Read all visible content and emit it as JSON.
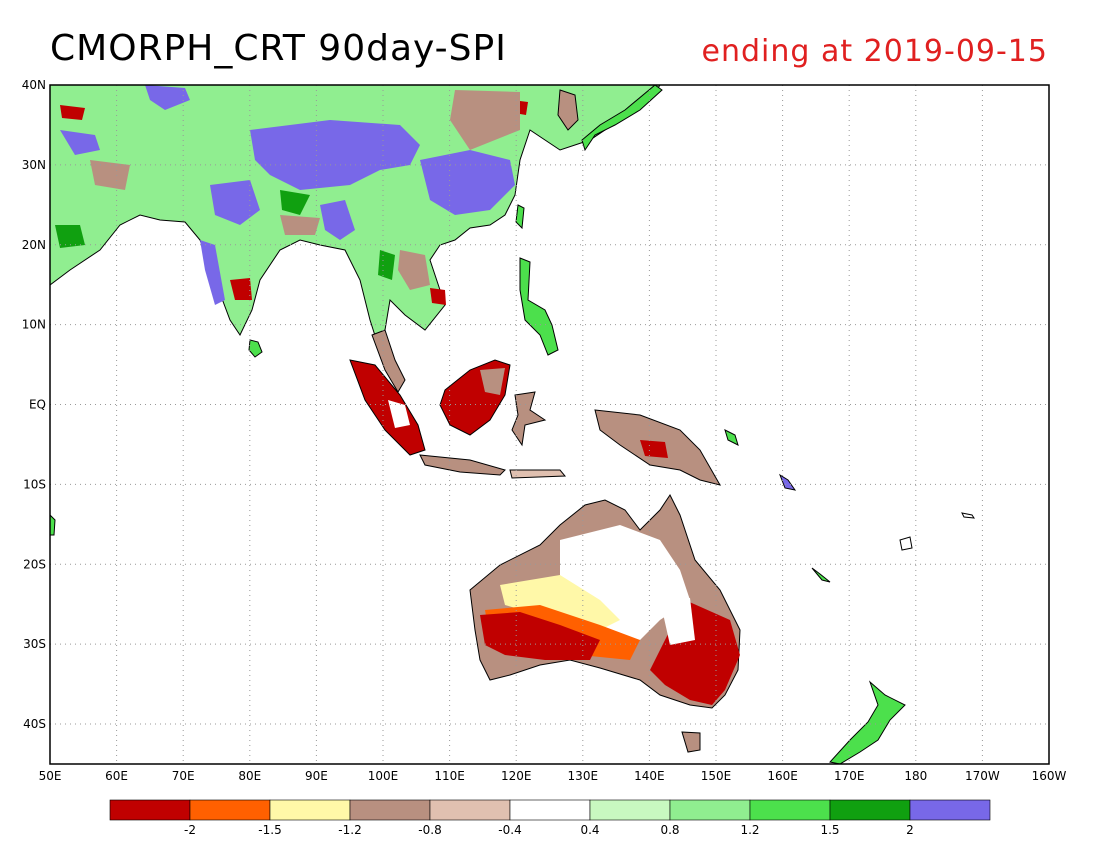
{
  "title": "CMORPH_CRT 90day-SPI",
  "subtitle": "ending at 2019-09-15",
  "map": {
    "lon_range": [
      50,
      200
    ],
    "lat_range": [
      -45,
      40
    ],
    "lon_ticks": [
      "50E",
      "60E",
      "70E",
      "80E",
      "90E",
      "100E",
      "110E",
      "120E",
      "130E",
      "140E",
      "150E",
      "160E",
      "170E",
      "180",
      "170W",
      "160W"
    ],
    "lat_ticks": [
      "40N",
      "30N",
      "20N",
      "10N",
      "EQ",
      "10S",
      "20S",
      "30S",
      "40S"
    ],
    "grid": "dotted"
  },
  "legend": {
    "colors": [
      "#c00000",
      "#ff6000",
      "#fff8a8",
      "#b89080",
      "#e0c0b0",
      "#ffffff",
      "#c8f8c0",
      "#90ee90",
      "#4ce04c",
      "#10a010",
      "#7868e8"
    ],
    "labels": [
      "-2",
      "-1.5",
      "-1.2",
      "-0.8",
      "-0.4",
      "0.4",
      "0.8",
      "1.2",
      "1.5",
      "2"
    ]
  }
}
